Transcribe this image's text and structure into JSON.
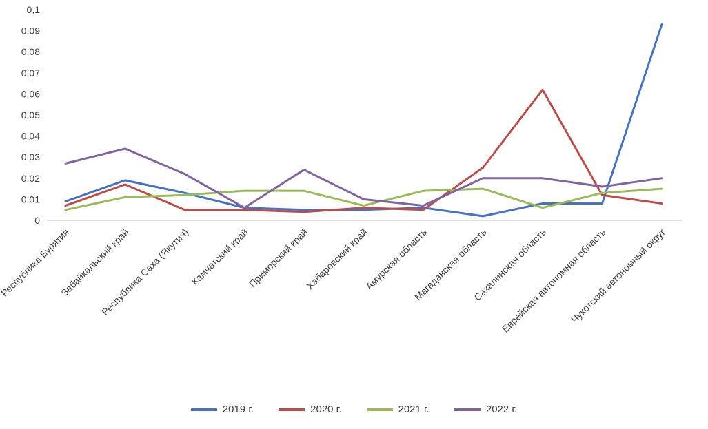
{
  "chart_data": {
    "type": "line",
    "categories": [
      "Республика Бурятия",
      "Забайкальский край",
      "Республика Саха (Якутия)",
      "Камчатский край",
      "Приморский край",
      "Хабаровский край",
      "Амурская область",
      "Магаданская область",
      "Сахалинская область",
      "Еврейская автономная область",
      "Чукотский автономный округ"
    ],
    "series": [
      {
        "name": "2019 г.",
        "color": "#4472C4",
        "values": [
          0.009,
          0.019,
          0.013,
          0.006,
          0.005,
          0.005,
          0.006,
          0.002,
          0.008,
          0.008,
          0.093
        ]
      },
      {
        "name": "2020 г.",
        "color": "#BE4B48",
        "values": [
          0.007,
          0.017,
          0.005,
          0.005,
          0.004,
          0.006,
          0.005,
          0.025,
          0.062,
          0.012,
          0.008
        ]
      },
      {
        "name": "2021 г.",
        "color": "#9BBB59",
        "values": [
          0.005,
          0.011,
          0.012,
          0.014,
          0.014,
          0.007,
          0.014,
          0.015,
          0.006,
          0.013,
          0.015
        ]
      },
      {
        "name": "2022 г.",
        "color": "#8064A2",
        "values": [
          0.027,
          0.034,
          0.022,
          0.006,
          0.024,
          0.01,
          0.007,
          0.02,
          0.02,
          0.016,
          0.02
        ]
      }
    ],
    "ylim": [
      0,
      0.1
    ],
    "ytick_step": 0.01,
    "yticks": [
      {
        "value": 0,
        "label": "0"
      },
      {
        "value": 0.01,
        "label": "0,01"
      },
      {
        "value": 0.02,
        "label": "0,02"
      },
      {
        "value": 0.03,
        "label": "0,03"
      },
      {
        "value": 0.04,
        "label": "0,04"
      },
      {
        "value": 0.05,
        "label": "0,05"
      },
      {
        "value": 0.06,
        "label": "0,06"
      },
      {
        "value": 0.07,
        "label": "0,07"
      },
      {
        "value": 0.08,
        "label": "0,08"
      },
      {
        "value": 0.09,
        "label": "0,09"
      },
      {
        "value": 0.1,
        "label": "0,1"
      }
    ],
    "grid": false,
    "legend_position": "bottom",
    "axis_color": "#bfbfbf",
    "text_color": "#404040"
  }
}
